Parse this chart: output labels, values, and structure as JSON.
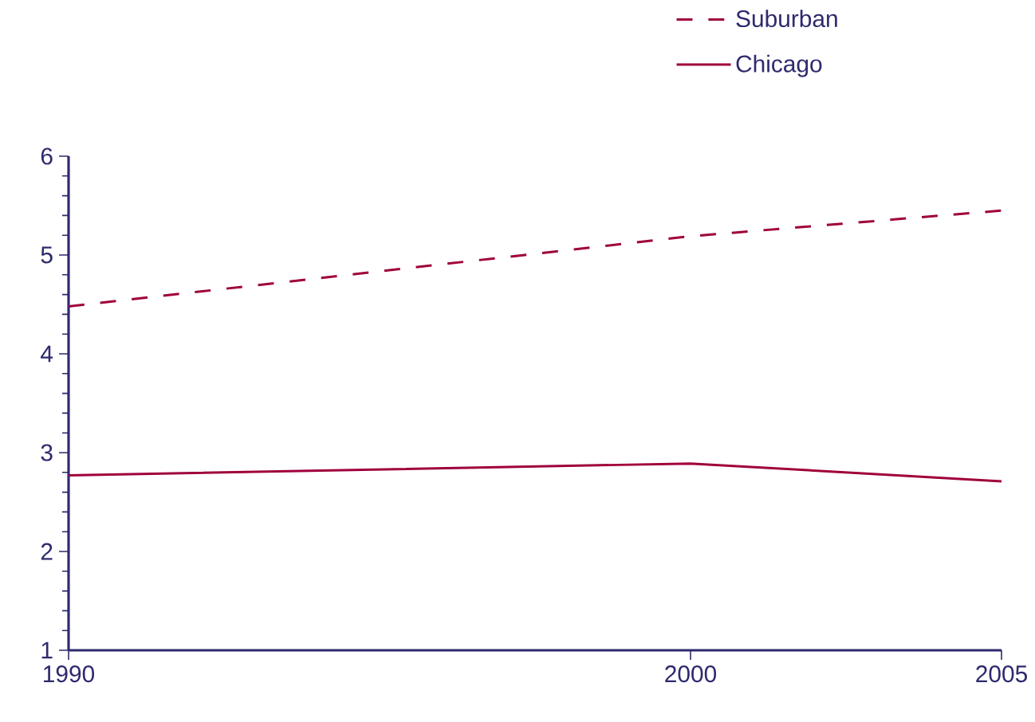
{
  "chart_data": {
    "type": "line",
    "x": [
      1990,
      2000,
      2005
    ],
    "series": [
      {
        "name": "Suburban",
        "color": "#a0003c",
        "line_style": "dashed",
        "values": [
          4.48,
          5.19,
          5.45
        ]
      },
      {
        "name": "Chicago",
        "color": "#a0003c",
        "line_style": "solid",
        "values": [
          2.77,
          2.89,
          2.71
        ]
      }
    ],
    "xlim": [
      1990,
      2005
    ],
    "ylim": [
      1,
      6
    ],
    "xticks": [
      1990,
      2000,
      2005
    ],
    "yticks": [
      1,
      2,
      3,
      4,
      5,
      6
    ],
    "grid": false,
    "legend": "top right",
    "marker": "none"
  }
}
